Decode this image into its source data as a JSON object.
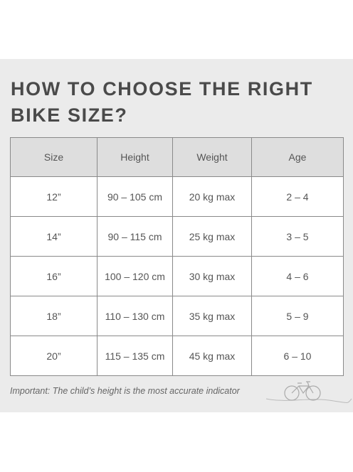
{
  "title": "HOW TO CHOOSE THE RIGHT BIKE SIZE?",
  "table": {
    "headers": [
      "Size",
      "Height",
      "Weight",
      "Age"
    ],
    "rows": [
      [
        "12”",
        "90 – 105 cm",
        "20 kg max",
        "2 – 4"
      ],
      [
        "14”",
        "90 – 115 cm",
        "25 kg max",
        "3 – 5"
      ],
      [
        "16”",
        "100 – 120 cm",
        "30 kg max",
        "4 – 6"
      ],
      [
        "18”",
        "110 – 130 cm",
        "35 kg max",
        "5 – 9"
      ],
      [
        "20”",
        "115 – 135 cm",
        "45 kg max",
        "6 – 10"
      ]
    ]
  },
  "note": "Important: The child’s height is the most accurate indicator"
}
